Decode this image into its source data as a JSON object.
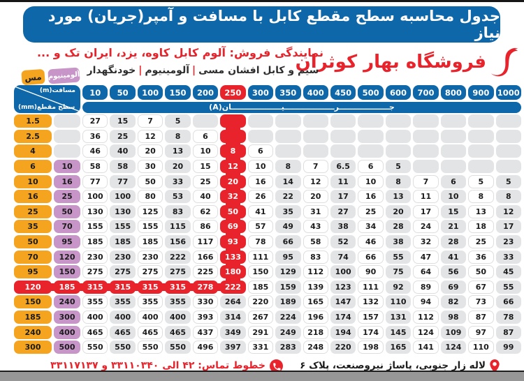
{
  "page": {
    "title": "جدول محاسبه سطح مقطع کابل با مسافت و آمپر(جریان) مورد نیاز"
  },
  "brand": {
    "name": "فروشگاه بهار کوثران",
    "logo_icon": "calligraphic-swoosh",
    "color": "#e8232b"
  },
  "subheader": {
    "dealer_line": "نمایندگی فروش: آلوم کابل کاوه، یزد، ایران تک و ...",
    "products": [
      "سیم و کابل افشان مسی",
      "آلومینیوم",
      "خودنگهدار"
    ],
    "separator": "|"
  },
  "legend": {
    "copper_label": "مس",
    "aluminum_label": "آلومینیوم",
    "copper_color": "#f5a41f",
    "aluminum_color": "#c795c8"
  },
  "table": {
    "corner": {
      "top_label": "مسافت(m)",
      "bottom_label": "سطح مقطع(mm)"
    },
    "current_banner": "جـــــــــــــــــــرـــــــــــــــــــیـــــــــــــــــــان(A)",
    "distance_columns": [
      "10",
      "50",
      "100",
      "150",
      "200",
      "250",
      "300",
      "350",
      "400",
      "450",
      "500",
      "600",
      "700",
      "800",
      "900",
      "1000"
    ],
    "highlight_column": "250",
    "highlight_column_index": 5,
    "highlight_row_index": 11,
    "rows": [
      {
        "cu": "1.5",
        "al": "",
        "v": [
          "27",
          "15",
          "7",
          "5",
          "",
          "",
          "",
          "",
          "",
          "",
          "",
          "",
          "",
          "",
          "",
          ""
        ]
      },
      {
        "cu": "2.5",
        "al": "",
        "v": [
          "36",
          "25",
          "12",
          "8",
          "6",
          "",
          "",
          "",
          "",
          "",
          "",
          "",
          "",
          "",
          "",
          ""
        ]
      },
      {
        "cu": "4",
        "al": "",
        "v": [
          "46",
          "40",
          "20",
          "13",
          "10",
          "8",
          "6",
          "",
          "",
          "",
          "",
          "",
          "",
          "",
          "",
          ""
        ]
      },
      {
        "cu": "6",
        "al": "10",
        "v": [
          "58",
          "58",
          "30",
          "20",
          "15",
          "12",
          "10",
          "8",
          "7",
          "6.5",
          "6",
          "5",
          "",
          "",
          "",
          ""
        ]
      },
      {
        "cu": "10",
        "al": "16",
        "v": [
          "77",
          "77",
          "50",
          "33",
          "25",
          "20",
          "16",
          "14",
          "12",
          "11",
          "10",
          "8",
          "7",
          "6",
          "5",
          "5"
        ]
      },
      {
        "cu": "16",
        "al": "25",
        "v": [
          "100",
          "100",
          "80",
          "53",
          "40",
          "32",
          "26",
          "22",
          "20",
          "17",
          "16",
          "13",
          "11",
          "10",
          "8",
          "8"
        ]
      },
      {
        "cu": "25",
        "al": "50",
        "v": [
          "130",
          "130",
          "125",
          "83",
          "62",
          "50",
          "41",
          "35",
          "31",
          "27",
          "25",
          "20",
          "17",
          "15",
          "13",
          "12"
        ]
      },
      {
        "cu": "35",
        "al": "70",
        "v": [
          "155",
          "155",
          "155",
          "115",
          "86",
          "69",
          "57",
          "49",
          "43",
          "38",
          "34",
          "28",
          "24",
          "21",
          "18",
          "17"
        ]
      },
      {
        "cu": "50",
        "al": "95",
        "v": [
          "185",
          "185",
          "185",
          "156",
          "117",
          "93",
          "78",
          "66",
          "58",
          "52",
          "46",
          "38",
          "32",
          "28",
          "25",
          "23"
        ]
      },
      {
        "cu": "70",
        "al": "120",
        "v": [
          "230",
          "230",
          "230",
          "222",
          "166",
          "133",
          "111",
          "95",
          "83",
          "74",
          "66",
          "55",
          "47",
          "41",
          "36",
          "33"
        ]
      },
      {
        "cu": "95",
        "al": "150",
        "v": [
          "275",
          "275",
          "275",
          "275",
          "225",
          "180",
          "150",
          "129",
          "112",
          "100",
          "90",
          "75",
          "64",
          "56",
          "50",
          "45"
        ]
      },
      {
        "cu": "120",
        "al": "185",
        "v": [
          "315",
          "315",
          "315",
          "315",
          "278",
          "222",
          "185",
          "159",
          "139",
          "123",
          "111",
          "92",
          "89",
          "69",
          "67",
          "55"
        ]
      },
      {
        "cu": "150",
        "al": "240",
        "v": [
          "355",
          "355",
          "355",
          "355",
          "330",
          "264",
          "220",
          "189",
          "165",
          "147",
          "132",
          "110",
          "94",
          "82",
          "73",
          "66"
        ]
      },
      {
        "cu": "185",
        "al": "300",
        "v": [
          "400",
          "400",
          "400",
          "400",
          "393",
          "314",
          "267",
          "224",
          "196",
          "174",
          "157",
          "131",
          "112",
          "98",
          "87",
          "78"
        ]
      },
      {
        "cu": "240",
        "al": "400",
        "v": [
          "465",
          "465",
          "465",
          "465",
          "437",
          "349",
          "291",
          "249",
          "218",
          "194",
          "174",
          "145",
          "124",
          "109",
          "97",
          "87"
        ]
      },
      {
        "cu": "300",
        "al": "500",
        "v": [
          "550",
          "550",
          "550",
          "550",
          "496",
          "397",
          "331",
          "283",
          "248",
          "220",
          "198",
          "165",
          "141",
          "124",
          "110",
          "99"
        ]
      }
    ]
  },
  "footer": {
    "address": "لاله زار جنوبی، پاساژ نیروصنعت، پلاک ۶",
    "phone_line": "خطوط تماس: ۴۲ الی ۳۳۱۱۰۳۴۰ و ۳۳۱۱۷۱۳۷"
  },
  "colors": {
    "blue": "#0e67a9",
    "red": "#e8232b",
    "orange": "#f5a41f",
    "purple": "#c795c8",
    "cell_gray": "#e3e4e6"
  }
}
